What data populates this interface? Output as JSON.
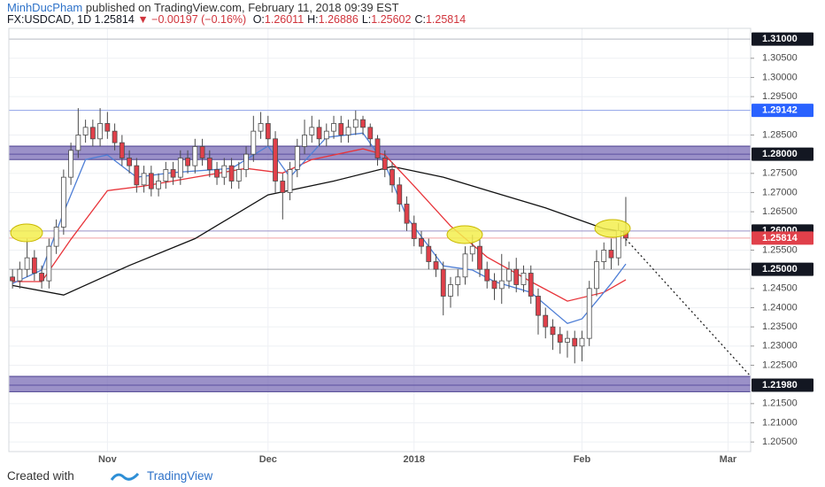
{
  "header": {
    "author": "MinhDucPham",
    "published": "published on TradingView.com, February 11, 2018 09:39 EST",
    "symbol": "FX:USDCAD, 1D",
    "last": "1.25814",
    "arrow": "▼",
    "change": "−0.00197 (−0.16%)",
    "ohlc": [
      {
        "label": "O:",
        "value": "1.26011"
      },
      {
        "label": "H:",
        "value": "1.26886"
      },
      {
        "label": "L:",
        "value": "1.25602"
      },
      {
        "label": "C:",
        "value": "1.25814"
      }
    ]
  },
  "footer": {
    "created": "Created with",
    "brand": "TradingView"
  },
  "chart_data": {
    "type": "candlestick",
    "categories": [
      null,
      null,
      null,
      null,
      null,
      null,
      null,
      null,
      null,
      null,
      null,
      null,
      null,
      "Nov",
      null,
      null,
      null,
      null,
      null,
      null,
      null,
      null,
      null,
      null,
      null,
      null,
      null,
      null,
      null,
      null,
      null,
      null,
      null,
      null,
      null,
      "Dec",
      null,
      null,
      null,
      null,
      null,
      null,
      null,
      null,
      null,
      null,
      null,
      null,
      null,
      null,
      null,
      null,
      null,
      null,
      null,
      "2018",
      null,
      null,
      null,
      null,
      null,
      null,
      null,
      null,
      null,
      null,
      null,
      null,
      null,
      null,
      null,
      null,
      null,
      null,
      null,
      null,
      null,
      null,
      "Feb",
      null,
      null,
      null,
      null,
      null,
      null,
      null,
      null,
      null,
      null,
      null,
      null,
      null,
      null,
      null,
      null,
      null,
      null,
      null,
      "Mar"
    ],
    "xlim": [
      -0.5,
      101.1
    ],
    "open": [
      1.248,
      1.247,
      1.25,
      1.253,
      1.249,
      1.247,
      1.256,
      1.261,
      1.274,
      1.281,
      1.285,
      1.287,
      1.284,
      1.288,
      1.286,
      1.283,
      1.279,
      1.277,
      1.272,
      1.275,
      1.271,
      1.273,
      1.276,
      1.274,
      1.279,
      1.277,
      1.282,
      1.279,
      1.276,
      1.274,
      1.277,
      1.273,
      1.276,
      1.28,
      1.286,
      1.288,
      1.284,
      1.273,
      1.27,
      1.276,
      1.282,
      1.285,
      1.287,
      1.284,
      1.286,
      1.288,
      1.285,
      1.287,
      1.289,
      1.287,
      1.284,
      1.279,
      1.276,
      1.272,
      1.267,
      1.262,
      1.258,
      1.256,
      1.252,
      1.25,
      1.243,
      1.246,
      1.248,
      1.254,
      1.256,
      1.25,
      1.247,
      1.245,
      1.247,
      1.25,
      1.246,
      1.249,
      1.243,
      1.238,
      1.235,
      1.233,
      1.231,
      1.232,
      1.23,
      1.232,
      1.245,
      1.252,
      1.255,
      1.253,
      1.26011,
      null,
      null,
      null,
      null,
      null,
      null,
      null,
      null,
      null,
      null,
      null,
      null,
      null,
      null
    ],
    "high": [
      1.25,
      1.252,
      1.258,
      1.255,
      1.251,
      1.258,
      1.263,
      1.276,
      1.283,
      1.292,
      1.289,
      1.289,
      1.292,
      1.291,
      1.288,
      1.285,
      1.281,
      1.279,
      1.277,
      1.277,
      1.275,
      1.278,
      1.278,
      1.281,
      1.281,
      1.284,
      1.284,
      1.281,
      1.278,
      1.279,
      1.279,
      1.278,
      1.282,
      1.29,
      1.291,
      1.29,
      1.286,
      1.275,
      1.278,
      1.284,
      1.289,
      1.29,
      1.289,
      1.288,
      1.29,
      1.29,
      1.289,
      1.2914,
      1.29,
      1.288,
      1.285,
      1.281,
      1.278,
      1.274,
      1.269,
      1.264,
      1.26,
      1.258,
      1.254,
      1.252,
      1.248,
      1.25,
      1.256,
      1.259,
      1.258,
      1.252,
      1.249,
      1.254,
      1.252,
      1.253,
      1.251,
      1.251,
      1.245,
      1.24,
      1.237,
      1.235,
      1.234,
      1.234,
      1.234,
      1.247,
      1.255,
      1.257,
      1.258,
      1.262,
      1.26886,
      null,
      null,
      null,
      null,
      null,
      null,
      null,
      null,
      null,
      null,
      null,
      null,
      null,
      null
    ],
    "low": [
      1.245,
      1.245,
      1.248,
      1.247,
      1.245,
      1.245,
      1.254,
      1.259,
      1.272,
      1.279,
      1.283,
      1.282,
      1.282,
      1.284,
      1.281,
      1.277,
      1.275,
      1.27,
      1.27,
      1.269,
      1.269,
      1.271,
      1.272,
      1.272,
      1.275,
      1.275,
      1.277,
      1.274,
      1.272,
      1.272,
      1.271,
      1.271,
      1.274,
      1.278,
      1.284,
      1.282,
      1.27,
      1.263,
      1.268,
      1.274,
      1.28,
      1.283,
      1.282,
      1.282,
      1.284,
      1.283,
      1.283,
      1.285,
      1.285,
      1.282,
      1.277,
      1.274,
      1.27,
      1.265,
      1.26,
      1.256,
      1.254,
      1.25,
      1.248,
      1.238,
      1.24,
      1.243,
      1.246,
      1.252,
      1.248,
      1.245,
      1.242,
      1.241,
      1.245,
      1.244,
      1.244,
      1.241,
      1.233,
      1.232,
      1.229,
      1.228,
      1.227,
      1.2255,
      1.226,
      1.23,
      1.243,
      1.25,
      1.25,
      1.251,
      1.25602,
      null,
      null,
      null,
      null,
      null,
      null,
      null,
      null,
      null,
      null,
      null,
      null,
      null,
      null
    ],
    "close": [
      1.247,
      1.25,
      1.253,
      1.249,
      1.247,
      1.256,
      1.261,
      1.274,
      1.281,
      1.285,
      1.287,
      1.284,
      1.288,
      1.286,
      1.283,
      1.279,
      1.277,
      1.272,
      1.275,
      1.271,
      1.273,
      1.276,
      1.274,
      1.279,
      1.277,
      1.282,
      1.279,
      1.276,
      1.274,
      1.277,
      1.273,
      1.276,
      1.28,
      1.286,
      1.288,
      1.284,
      1.273,
      1.27,
      1.276,
      1.282,
      1.285,
      1.287,
      1.284,
      1.286,
      1.288,
      1.285,
      1.287,
      1.289,
      1.287,
      1.284,
      1.279,
      1.276,
      1.272,
      1.267,
      1.262,
      1.258,
      1.256,
      1.252,
      1.25,
      1.243,
      1.246,
      1.248,
      1.254,
      1.256,
      1.25,
      1.247,
      1.245,
      1.247,
      1.25,
      1.246,
      1.249,
      1.243,
      1.238,
      1.235,
      1.233,
      1.231,
      1.232,
      1.23,
      1.232,
      1.245,
      1.252,
      1.255,
      1.253,
      1.26011,
      1.25814,
      null,
      null,
      null,
      null,
      null,
      null,
      null,
      null,
      null,
      null,
      null,
      null,
      null,
      null
    ],
    "up_color": "#ffffff",
    "down_color": "#e0404a",
    "outline_color": "#4a4a4a",
    "lines": [
      {
        "color": "#111111",
        "x": [
          0,
          7,
          16,
          25,
          35,
          44,
          52,
          59,
          66,
          73,
          81,
          84
        ],
        "values": [
          1.2458,
          1.2433,
          1.251,
          1.258,
          1.2694,
          1.273,
          1.2768,
          1.274,
          1.27,
          1.266,
          1.2606,
          1.2597
        ]
      },
      {
        "color": "#e8343a",
        "x": [
          0,
          4,
          8,
          13,
          18,
          25,
          32,
          37,
          41,
          48,
          51,
          55,
          60,
          65,
          71,
          76,
          81,
          84
        ],
        "values": [
          1.2468,
          1.2468,
          1.2578,
          1.2705,
          1.2717,
          1.274,
          1.2763,
          1.2751,
          1.2786,
          1.2814,
          1.2798,
          1.2717,
          1.2613,
          1.2532,
          1.2468,
          1.2417,
          1.244,
          1.2473
        ]
      },
      {
        "color": "#4f7fd6",
        "x": [
          0,
          4,
          7,
          10,
          13,
          17,
          22,
          30,
          35,
          38,
          43,
          48,
          51,
          54,
          59,
          63,
          66,
          71,
          76,
          78,
          82,
          84
        ],
        "values": [
          1.2463,
          1.2498,
          1.2648,
          1.2786,
          1.2798,
          1.274,
          1.2752,
          1.2763,
          1.2821,
          1.274,
          1.2844,
          1.2855,
          1.2775,
          1.2636,
          1.2509,
          1.2498,
          1.2468,
          1.244,
          1.2359,
          1.2371,
          1.2463,
          1.2514
        ]
      }
    ],
    "zones": [
      {
        "from": 1.2786,
        "to": 1.2821,
        "color": "#7a6cb6"
      },
      {
        "from": 1.2181,
        "to": 1.2221,
        "color": "#7a6cb6"
      }
    ],
    "price_labels": [
      {
        "value": 1.31,
        "label": "1.31000",
        "color": "#131722",
        "line": "#b8bbc4"
      },
      {
        "value": 1.29142,
        "label": "1.29142",
        "color": "#2962ff",
        "line": "#8fa3e8"
      },
      {
        "value": 1.28,
        "label": "1.28000",
        "color": "#131722",
        "line": "#5b4fa0"
      },
      {
        "value": 1.26,
        "label": "1.26000",
        "color": "#131722",
        "line": "#9a90c8"
      },
      {
        "value": 1.25814,
        "label": "1.25814",
        "color": "#e0404a",
        "line": "#f0a0a4"
      },
      {
        "value": 1.25,
        "label": "1.25000",
        "color": "#131722",
        "line": "#a0a3ab"
      },
      {
        "value": 1.2198,
        "label": "1.21980",
        "color": "#131722",
        "line": "#5b4fa0"
      }
    ],
    "ylim": [
      1.2025,
      1.3128
    ],
    "yticks": [
      {
        "value": 1.305,
        "label": "1.30500"
      },
      {
        "value": 1.3,
        "label": "1.30000"
      },
      {
        "value": 1.295,
        "label": "1.29500"
      },
      {
        "value": 1.285,
        "label": "1.28500"
      },
      {
        "value": 1.275,
        "label": "1.27500"
      },
      {
        "value": 1.27,
        "label": "1.27000"
      },
      {
        "value": 1.265,
        "label": "1.26500"
      },
      {
        "value": 1.255,
        "label": "1.25500"
      },
      {
        "value": 1.245,
        "label": "1.24500"
      },
      {
        "value": 1.24,
        "label": "1.24000"
      },
      {
        "value": 1.235,
        "label": "1.23500"
      },
      {
        "value": 1.23,
        "label": "1.23000"
      },
      {
        "value": 1.225,
        "label": "1.22500"
      },
      {
        "value": 1.215,
        "label": "1.21500"
      },
      {
        "value": 1.21,
        "label": "1.21000"
      },
      {
        "value": 1.205,
        "label": "1.20500"
      }
    ],
    "grid": true
  }
}
